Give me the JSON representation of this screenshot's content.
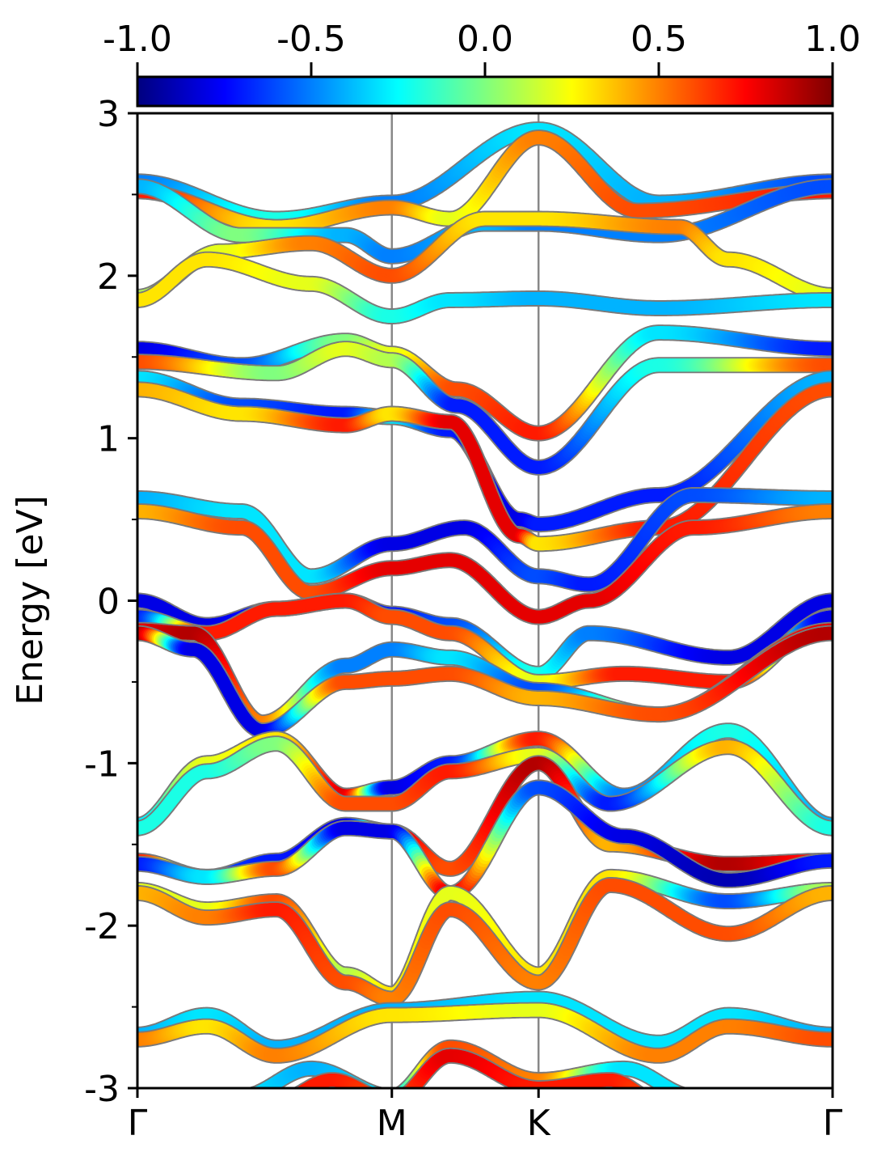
{
  "chart_data": {
    "type": "line",
    "subtype": "band-structure",
    "title": "",
    "xlabel": "",
    "ylabel": "Energy [eV]",
    "ylim": [
      -3,
      3
    ],
    "yticks": [
      -3,
      -2,
      -1,
      0,
      1,
      2,
      3
    ],
    "yticklabels": [
      "-3",
      "-2",
      "-1",
      "0",
      "1",
      "2",
      "3"
    ],
    "kpath": {
      "labels": [
        "Γ",
        "M",
        "K",
        "Γ"
      ],
      "positions": [
        0.0,
        0.366,
        0.577,
        1.0
      ]
    },
    "grid": false,
    "colorbar": {
      "location": "top",
      "colormap": "jet",
      "range": [
        -1.0,
        1.0
      ],
      "ticks": [
        -1.0,
        -0.5,
        0.0,
        0.5,
        1.0
      ],
      "ticklabels": [
        "-1.0",
        "-0.5",
        "0.0",
        "0.5",
        "1.0"
      ],
      "stops": [
        "#00007f",
        "#0000ff",
        "#007fff",
        "#00ffff",
        "#7fff7f",
        "#ffff00",
        "#ff7f00",
        "#ff0000",
        "#7f0000"
      ]
    },
    "series": [
      {
        "x": [
          0,
          0.2,
          0.366,
          0.577,
          0.75,
          1.0
        ],
        "y": [
          2.58,
          2.35,
          2.45,
          2.9,
          2.45,
          2.58
        ],
        "c": [
          -0.5,
          -0.2,
          -0.5,
          -0.3,
          -0.4,
          -0.6
        ]
      },
      {
        "x": [
          0,
          0.2,
          0.366,
          0.45,
          0.577,
          0.72,
          1.0
        ],
        "y": [
          2.52,
          2.3,
          2.42,
          2.35,
          2.85,
          2.4,
          2.52
        ],
        "c": [
          0.7,
          0.3,
          0.5,
          0.2,
          0.5,
          0.6,
          0.7
        ]
      },
      {
        "x": [
          0,
          0.15,
          0.3,
          0.366,
          0.5,
          0.577,
          0.75,
          1.0
        ],
        "y": [
          2.55,
          2.25,
          2.25,
          2.12,
          2.32,
          2.32,
          2.25,
          2.55
        ],
        "c": [
          -0.4,
          0.0,
          -0.4,
          -0.5,
          -0.4,
          -0.5,
          -0.5,
          -0.6
        ]
      },
      {
        "x": [
          0,
          0.12,
          0.25,
          0.366,
          0.5,
          0.577,
          0.78,
          0.85,
          1.0
        ],
        "y": [
          1.87,
          2.15,
          2.2,
          2.0,
          2.35,
          2.35,
          2.3,
          2.1,
          1.88
        ],
        "c": [
          0.1,
          0.2,
          0.5,
          0.6,
          0.3,
          0.3,
          0.5,
          0.3,
          0.2
        ]
      },
      {
        "x": [
          0,
          0.1,
          0.25,
          0.366,
          0.45,
          0.577,
          0.75,
          1.0
        ],
        "y": [
          1.85,
          2.1,
          1.95,
          1.75,
          1.85,
          1.86,
          1.8,
          1.85
        ],
        "c": [
          0.3,
          0.3,
          0.2,
          -0.2,
          -0.3,
          -0.4,
          -0.4,
          -0.3
        ]
      },
      {
        "x": [
          0,
          0.15,
          0.3,
          0.366,
          0.46,
          0.577,
          0.75,
          1.0
        ],
        "y": [
          1.55,
          1.45,
          1.6,
          1.52,
          1.3,
          1.03,
          1.65,
          1.55
        ],
        "c": [
          -0.8,
          -0.6,
          0.0,
          0.2,
          0.6,
          0.7,
          -0.3,
          -0.7
        ]
      },
      {
        "x": [
          0,
          0.2,
          0.3,
          0.366,
          0.46,
          0.577,
          0.75,
          1.0
        ],
        "y": [
          1.47,
          1.4,
          1.55,
          1.48,
          1.2,
          0.82,
          1.45,
          1.45
        ],
        "c": [
          0.6,
          0.0,
          0.2,
          0.1,
          -0.7,
          -0.7,
          -0.2,
          0.6
        ]
      },
      {
        "x": [
          0,
          0.15,
          0.3,
          0.366,
          0.45,
          0.55,
          0.577,
          0.75,
          1.0
        ],
        "y": [
          1.37,
          1.2,
          1.15,
          1.13,
          1.05,
          0.5,
          0.47,
          0.65,
          1.37
        ],
        "c": [
          -0.3,
          -0.6,
          -0.7,
          -0.3,
          -0.7,
          -0.8,
          -0.7,
          -0.7,
          -0.4
        ]
      },
      {
        "x": [
          0,
          0.15,
          0.3,
          0.366,
          0.45,
          0.55,
          0.577,
          0.75,
          1.0
        ],
        "y": [
          1.3,
          1.15,
          1.08,
          1.15,
          1.1,
          0.4,
          0.35,
          0.45,
          1.3
        ],
        "c": [
          0.4,
          0.3,
          0.7,
          0.3,
          0.8,
          0.8,
          0.3,
          0.7,
          0.6
        ]
      },
      {
        "x": [
          0,
          0.15,
          0.25,
          0.366,
          0.47,
          0.577,
          0.65,
          0.8,
          1.0
        ],
        "y": [
          0.63,
          0.55,
          0.15,
          0.35,
          0.45,
          0.15,
          0.1,
          0.65,
          0.63
        ],
        "c": [
          -0.4,
          -0.3,
          -0.3,
          -0.8,
          -0.8,
          -0.6,
          -0.7,
          -0.6,
          -0.4
        ]
      },
      {
        "x": [
          0,
          0.15,
          0.25,
          0.366,
          0.45,
          0.577,
          0.65,
          0.8,
          1.0
        ],
        "y": [
          0.55,
          0.45,
          0.05,
          0.2,
          0.25,
          -0.1,
          0.0,
          0.45,
          0.55
        ],
        "c": [
          0.4,
          0.6,
          0.6,
          0.8,
          0.8,
          0.8,
          0.8,
          0.7,
          0.5
        ]
      },
      {
        "x": [
          0,
          0.1,
          0.2,
          0.3,
          0.366,
          0.45,
          0.577,
          0.65,
          0.85,
          1.0
        ],
        "y": [
          0.0,
          -0.15,
          -0.05,
          0.0,
          -0.08,
          -0.15,
          -0.45,
          -0.2,
          -0.35,
          0.0
        ],
        "c": [
          -0.8,
          -0.8,
          -0.7,
          -0.7,
          -0.7,
          -0.6,
          -0.2,
          -0.5,
          -0.8,
          -0.8
        ]
      },
      {
        "x": [
          0,
          0.1,
          0.2,
          0.3,
          0.366,
          0.45,
          0.577,
          0.7,
          0.85,
          1.0
        ],
        "y": [
          -0.1,
          -0.2,
          -0.05,
          0.0,
          -0.1,
          -0.2,
          -0.5,
          -0.45,
          -0.5,
          -0.1
        ],
        "c": [
          -0.7,
          0.7,
          0.7,
          0.7,
          0.6,
          0.6,
          0.2,
          0.7,
          0.7,
          -0.8
        ]
      },
      {
        "x": [
          0,
          0.08,
          0.18,
          0.3,
          0.366,
          0.45,
          0.577,
          0.75,
          1.0
        ],
        "y": [
          -0.18,
          -0.2,
          -0.75,
          -0.4,
          -0.3,
          -0.35,
          -0.55,
          -0.7,
          -0.18
        ],
        "c": [
          0.8,
          0.9,
          0.5,
          -0.5,
          -0.5,
          -0.3,
          -0.6,
          0.2,
          0.8
        ]
      },
      {
        "x": [
          0,
          0.08,
          0.18,
          0.3,
          0.366,
          0.45,
          0.577,
          0.75,
          1.0
        ],
        "y": [
          -0.2,
          -0.3,
          -0.8,
          -0.5,
          -0.48,
          -0.45,
          -0.6,
          -0.7,
          -0.2
        ],
        "c": [
          0.9,
          -0.8,
          -0.8,
          0.6,
          0.6,
          0.6,
          0.4,
          0.6,
          0.9
        ]
      },
      {
        "x": [
          0,
          0.1,
          0.2,
          0.3,
          0.366,
          0.45,
          0.577,
          0.7,
          0.85,
          1.0
        ],
        "y": [
          -1.38,
          -1.0,
          -0.85,
          -1.2,
          -1.15,
          -1.0,
          -0.85,
          -1.2,
          -0.8,
          -1.38
        ],
        "c": [
          -0.3,
          0.2,
          0.3,
          0.8,
          -0.8,
          -0.7,
          0.7,
          -0.5,
          -0.2,
          -0.4
        ]
      },
      {
        "x": [
          0,
          0.1,
          0.2,
          0.3,
          0.366,
          0.45,
          0.577,
          0.68,
          0.85,
          1.0
        ],
        "y": [
          -1.4,
          -1.05,
          -0.88,
          -1.25,
          -1.25,
          -1.05,
          -0.95,
          -1.25,
          -0.9,
          -1.4
        ],
        "c": [
          -0.2,
          -0.2,
          0.0,
          0.6,
          0.6,
          0.7,
          0.2,
          -0.7,
          0.4,
          -0.2
        ]
      },
      {
        "x": [
          0,
          0.1,
          0.2,
          0.3,
          0.366,
          0.45,
          0.577,
          0.68,
          0.85,
          1.0
        ],
        "y": [
          -1.6,
          -1.7,
          -1.6,
          -1.38,
          -1.42,
          -1.65,
          -1.0,
          -1.5,
          -1.62,
          -1.6
        ],
        "c": [
          0.7,
          -0.6,
          -0.7,
          -0.8,
          0.8,
          0.6,
          0.9,
          0.4,
          0.9,
          0.7
        ]
      },
      {
        "x": [
          0,
          0.1,
          0.2,
          0.3,
          0.366,
          0.45,
          0.577,
          0.7,
          0.85,
          1.0
        ],
        "y": [
          -1.62,
          -1.7,
          -1.65,
          -1.4,
          -1.42,
          -1.8,
          -1.15,
          -1.45,
          -1.72,
          -1.6
        ],
        "c": [
          -0.7,
          -0.3,
          0.6,
          -0.8,
          -0.8,
          0.8,
          -0.6,
          -0.8,
          -0.9,
          -0.7
        ]
      },
      {
        "x": [
          0,
          0.1,
          0.2,
          0.3,
          0.366,
          0.45,
          0.577,
          0.68,
          0.85,
          1.0
        ],
        "y": [
          -1.78,
          -1.9,
          -1.85,
          -2.3,
          -2.42,
          -1.8,
          -2.3,
          -1.7,
          -1.85,
          -1.78
        ],
        "c": [
          0.2,
          0.2,
          0.6,
          0.1,
          0.3,
          0.2,
          0.3,
          0.3,
          -0.6,
          0.1
        ]
      },
      {
        "x": [
          0,
          0.1,
          0.2,
          0.3,
          0.366,
          0.45,
          0.577,
          0.68,
          0.85,
          1.0
        ],
        "y": [
          -1.8,
          -1.95,
          -1.9,
          -2.35,
          -2.45,
          -1.9,
          -2.35,
          -1.75,
          -2.05,
          -1.8
        ],
        "c": [
          0.4,
          0.5,
          0.7,
          0.6,
          0.5,
          0.6,
          0.5,
          0.6,
          0.6,
          0.4
        ]
      },
      {
        "x": [
          0,
          0.1,
          0.2,
          0.366,
          0.577,
          0.75,
          0.85,
          1.0
        ],
        "y": [
          -2.67,
          -2.55,
          -2.75,
          -2.52,
          -2.45,
          -2.72,
          -2.55,
          -2.67
        ],
        "c": [
          -0.4,
          -0.3,
          -0.4,
          -0.4,
          -0.3,
          -0.3,
          -0.3,
          -0.4
        ]
      },
      {
        "x": [
          0,
          0.1,
          0.2,
          0.366,
          0.577,
          0.75,
          0.85,
          1.0
        ],
        "y": [
          -2.7,
          -2.62,
          -2.8,
          -2.55,
          -2.52,
          -2.8,
          -2.62,
          -2.7
        ],
        "c": [
          0.5,
          0.3,
          0.5,
          0.3,
          0.2,
          0.5,
          0.5,
          0.6
        ]
      },
      {
        "x": [
          0.15,
          0.25,
          0.366,
          0.45,
          0.577,
          0.7,
          0.8
        ],
        "y": [
          -3.05,
          -2.88,
          -3.05,
          -2.75,
          -2.95,
          -2.88,
          -3.05
        ],
        "c": [
          -0.3,
          -0.4,
          -0.3,
          0.6,
          0.5,
          -0.3,
          -0.3
        ]
      },
      {
        "x": [
          0.2,
          0.28,
          0.366,
          0.45,
          0.577,
          0.68,
          0.75
        ],
        "y": [
          -3.08,
          -2.95,
          -3.08,
          -2.8,
          -3.0,
          -2.95,
          -3.08
        ],
        "c": [
          0.7,
          0.7,
          0.6,
          0.8,
          0.7,
          0.7,
          0.6
        ]
      }
    ]
  }
}
